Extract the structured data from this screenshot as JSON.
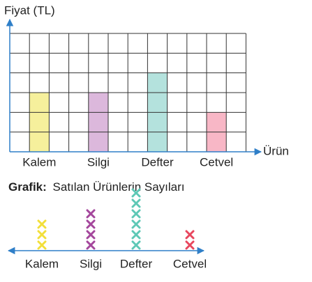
{
  "chart_data": [
    {
      "type": "bar",
      "y_label": "Fiyat (TL)",
      "x_label": "Ürün",
      "categories": [
        "Kalem",
        "Silgi",
        "Defter",
        "Cetvel"
      ],
      "values": [
        3,
        3,
        4,
        2
      ],
      "colors": [
        "#f6f09c",
        "#dcb8dc",
        "#b4e2dd",
        "#f8b7c6"
      ],
      "ylim": [
        0,
        6
      ],
      "yticks": [
        0,
        1,
        2,
        3,
        4,
        5,
        6
      ],
      "grid": true
    },
    {
      "type": "pictograph",
      "title_label": "Grafik:",
      "title": "Satılan Ürünlerin Sayıları",
      "categories": [
        "Kalem",
        "Silgi",
        "Defter",
        "Cetvel"
      ],
      "values": [
        3,
        4,
        6,
        2
      ],
      "colors": [
        "#f2df3a",
        "#a4479c",
        "#5ec8b6",
        "#e8475e"
      ]
    }
  ]
}
